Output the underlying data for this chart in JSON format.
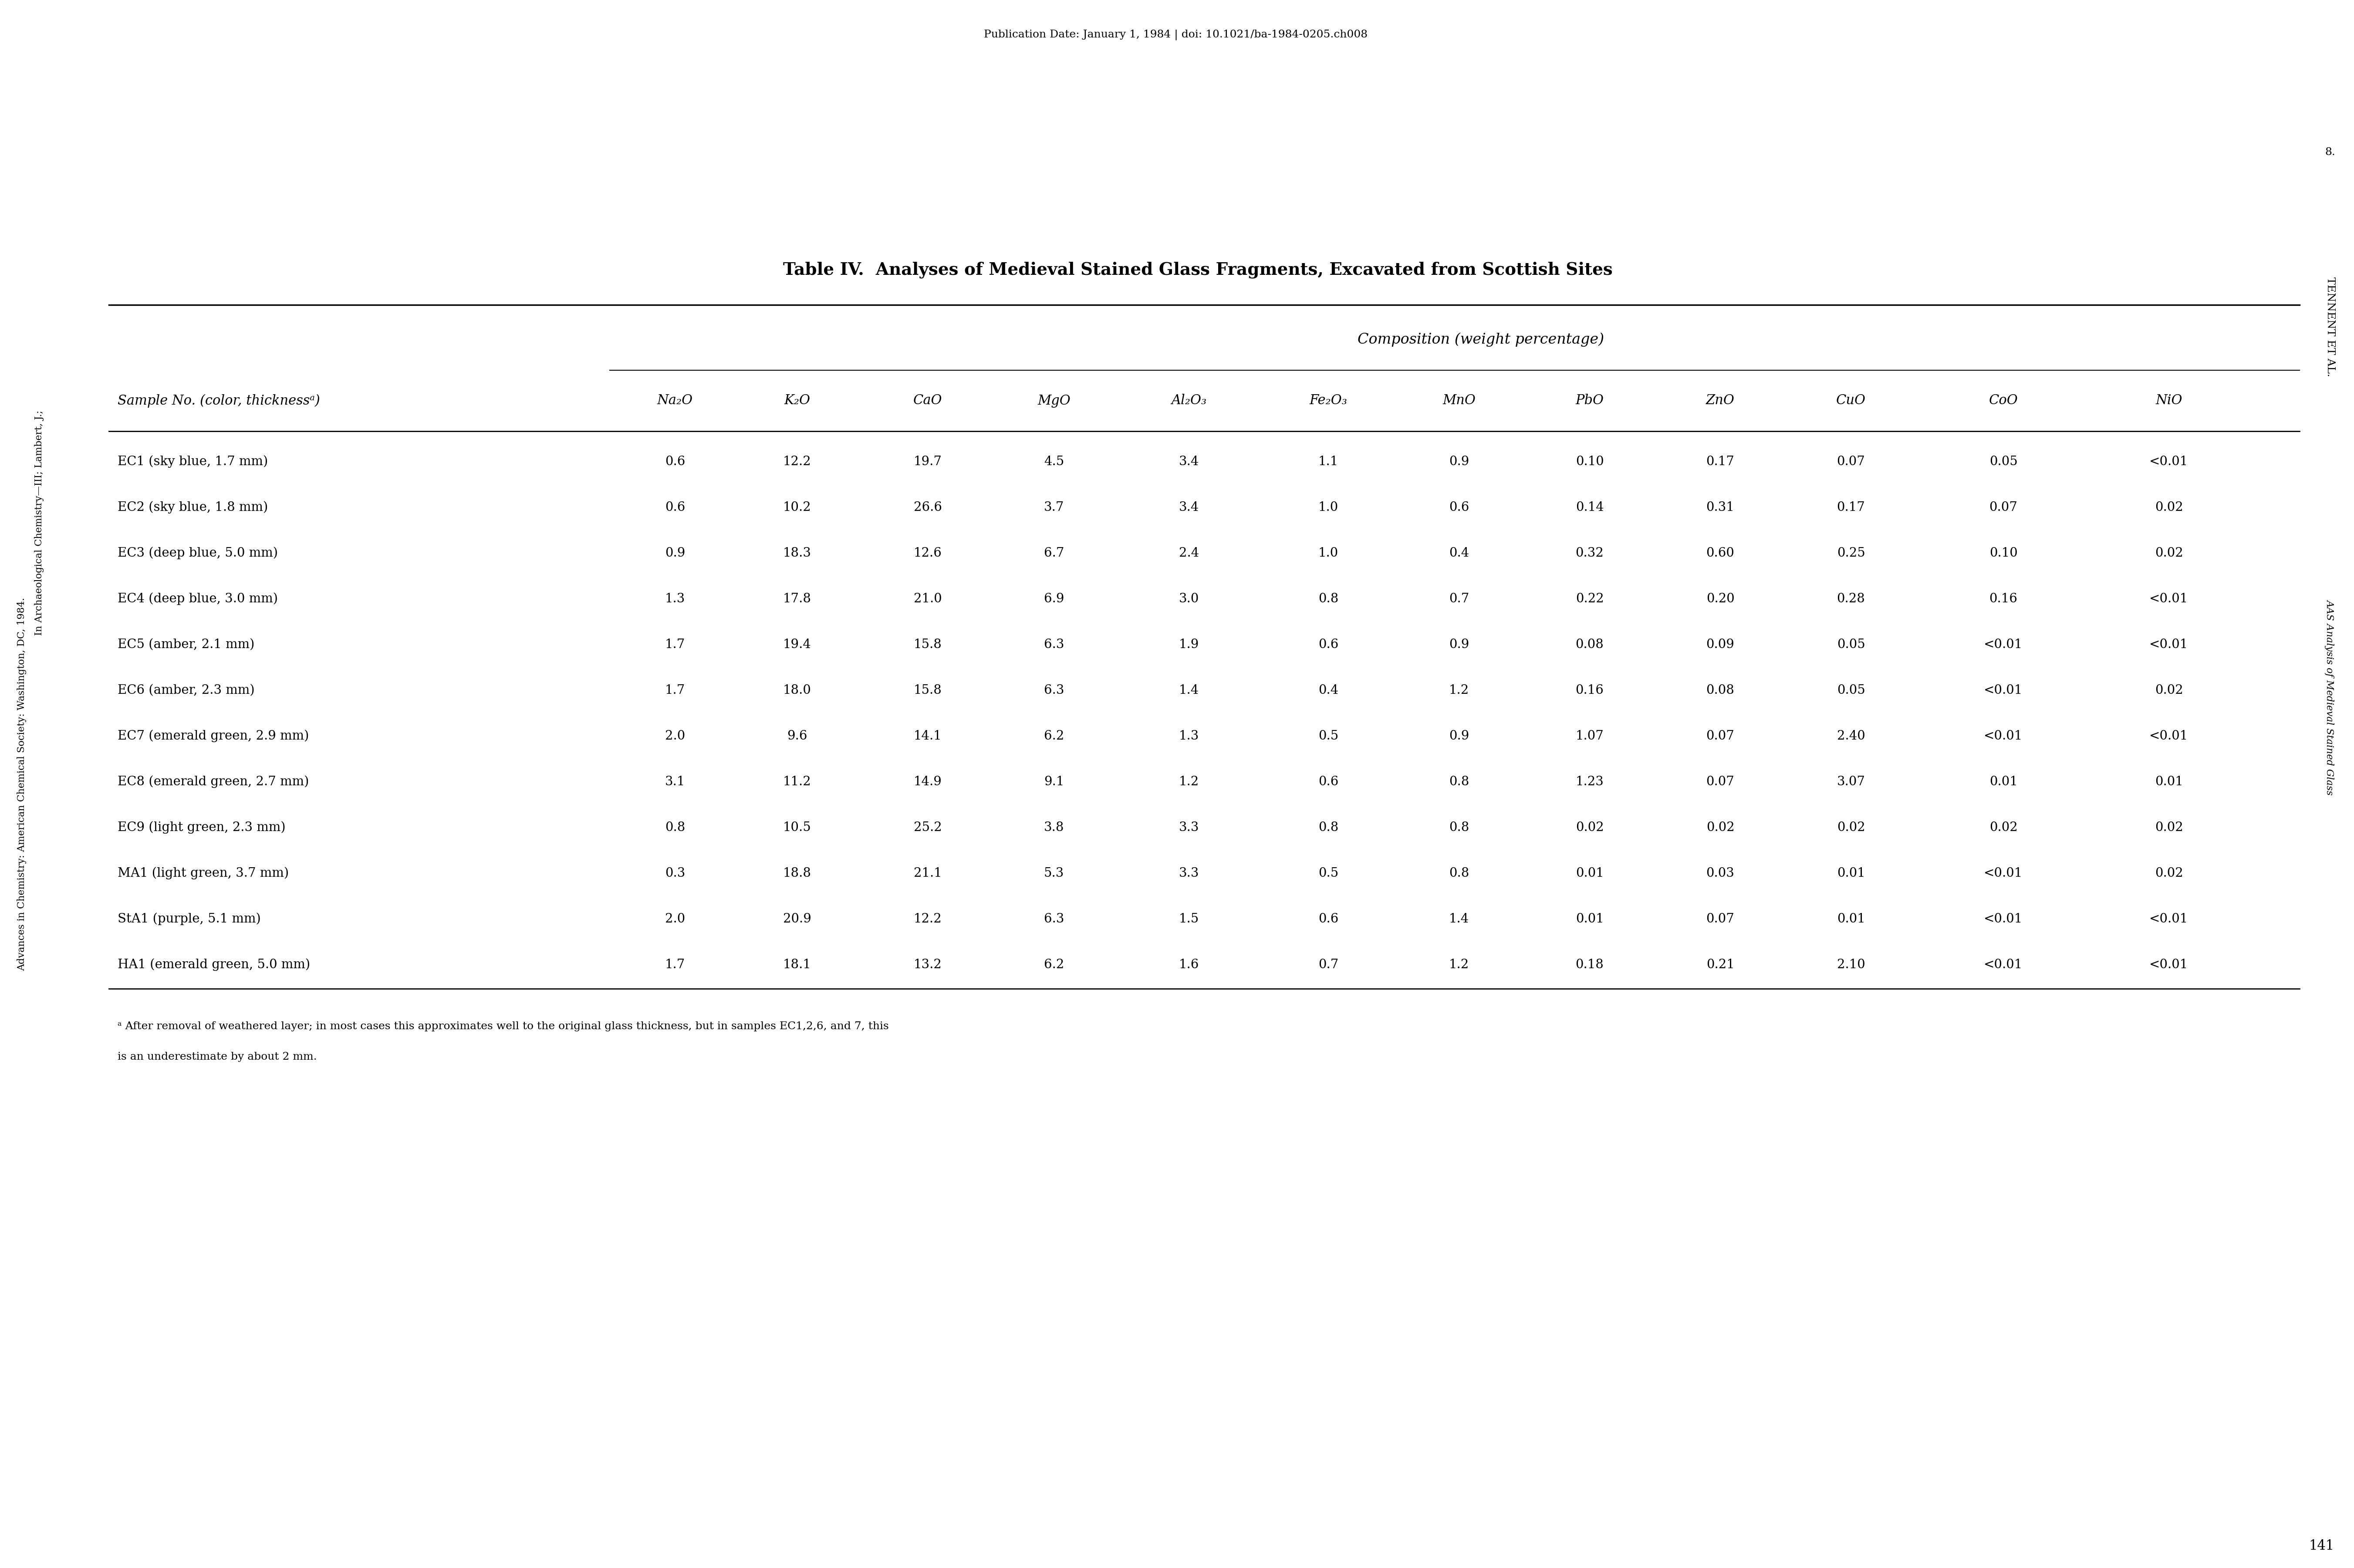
{
  "title": "Table IV.  Analyses of Medieval Stained Glass Fragments, Excavated from Scottish Sites",
  "composition_header": "Composition (weight percentage)",
  "column_headers": [
    "Na₂O",
    "K₂O",
    "CaO",
    "MgO",
    "Al₂O₃",
    "Fe₂O₃",
    "MnO",
    "PbO",
    "ZnO",
    "CuO",
    "CoO",
    "NiO"
  ],
  "sample_col_header": "Sample No. (color, thicknessᵃ)",
  "rows": [
    [
      "EC1 (sky blue, 1.7 mm)",
      "0.6",
      "12.2",
      "19.7",
      "4.5",
      "3.4",
      "1.1",
      "0.9",
      "0.10",
      "0.17",
      "0.07",
      "0.05",
      "<0.01"
    ],
    [
      "EC2 (sky blue, 1.8 mm)",
      "0.6",
      "10.2",
      "26.6",
      "3.7",
      "3.4",
      "1.0",
      "0.6",
      "0.14",
      "0.31",
      "0.17",
      "0.07",
      "0.02"
    ],
    [
      "EC3 (deep blue, 5.0 mm)",
      "0.9",
      "18.3",
      "12.6",
      "6.7",
      "2.4",
      "1.0",
      "0.4",
      "0.32",
      "0.60",
      "0.25",
      "0.10",
      "0.02"
    ],
    [
      "EC4 (deep blue, 3.0 mm)",
      "1.3",
      "17.8",
      "21.0",
      "6.9",
      "3.0",
      "0.8",
      "0.7",
      "0.22",
      "0.20",
      "0.28",
      "0.16",
      "<0.01"
    ],
    [
      "EC5 (amber, 2.1 mm)",
      "1.7",
      "19.4",
      "15.8",
      "6.3",
      "1.9",
      "0.6",
      "0.9",
      "0.08",
      "0.09",
      "0.05",
      "<0.01",
      "<0.01"
    ],
    [
      "EC6 (amber, 2.3 mm)",
      "1.7",
      "18.0",
      "15.8",
      "6.3",
      "1.4",
      "0.4",
      "1.2",
      "0.16",
      "0.08",
      "0.05",
      "<0.01",
      "0.02"
    ],
    [
      "EC7 (emerald green, 2.9 mm)",
      "2.0",
      "9.6",
      "14.1",
      "6.2",
      "1.3",
      "0.5",
      "0.9",
      "1.07",
      "0.07",
      "2.40",
      "<0.01",
      "<0.01"
    ],
    [
      "EC8 (emerald green, 2.7 mm)",
      "3.1",
      "11.2",
      "14.9",
      "9.1",
      "1.2",
      "0.6",
      "0.8",
      "1.23",
      "0.07",
      "3.07",
      "0.01",
      "0.01"
    ],
    [
      "EC9 (light green, 2.3 mm)",
      "0.8",
      "10.5",
      "25.2",
      "3.8",
      "3.3",
      "0.8",
      "0.8",
      "0.02",
      "0.02",
      "0.02",
      "0.02",
      "0.02"
    ],
    [
      "MA1 (light green, 3.7 mm)",
      "0.3",
      "18.8",
      "21.1",
      "5.3",
      "3.3",
      "0.5",
      "0.8",
      "0.01",
      "0.03",
      "0.01",
      "<0.01",
      "0.02"
    ],
    [
      "StA1 (purple, 5.1 mm)",
      "2.0",
      "20.9",
      "12.2",
      "6.3",
      "1.5",
      "0.6",
      "1.4",
      "0.01",
      "0.07",
      "0.01",
      "<0.01",
      "<0.01"
    ],
    [
      "HA1 (emerald green, 5.0 mm)",
      "1.7",
      "18.1",
      "13.2",
      "6.2",
      "1.6",
      "0.7",
      "1.2",
      "0.18",
      "0.21",
      "2.10",
      "<0.01",
      "<0.01"
    ]
  ],
  "footnote_a": "ᵃ After removal of weathered layer; in most cases this approximates well to the original glass thickness, but in samples EC1,2,6, and 7, this",
  "footnote_b": "is an underestimate by about 2 mm.",
  "top_text": "Publication Date: January 1, 1984 | doi: 10.1021/ba-1984-0205.ch008",
  "right_side_top": "8.",
  "right_side_text1": "TENNENT ET AL.",
  "right_side_text2": "AAS Analysis of Medieval Stained Glass",
  "left_side_text1": "Advances in Chemistry: American Chemical Society: Washington, DC, 1984.",
  "left_side_text2": "In Archaeological Chemistry—III; Lambert, J.;",
  "bottom_right": "141",
  "bg_color": "#ffffff",
  "text_color": "#000000"
}
